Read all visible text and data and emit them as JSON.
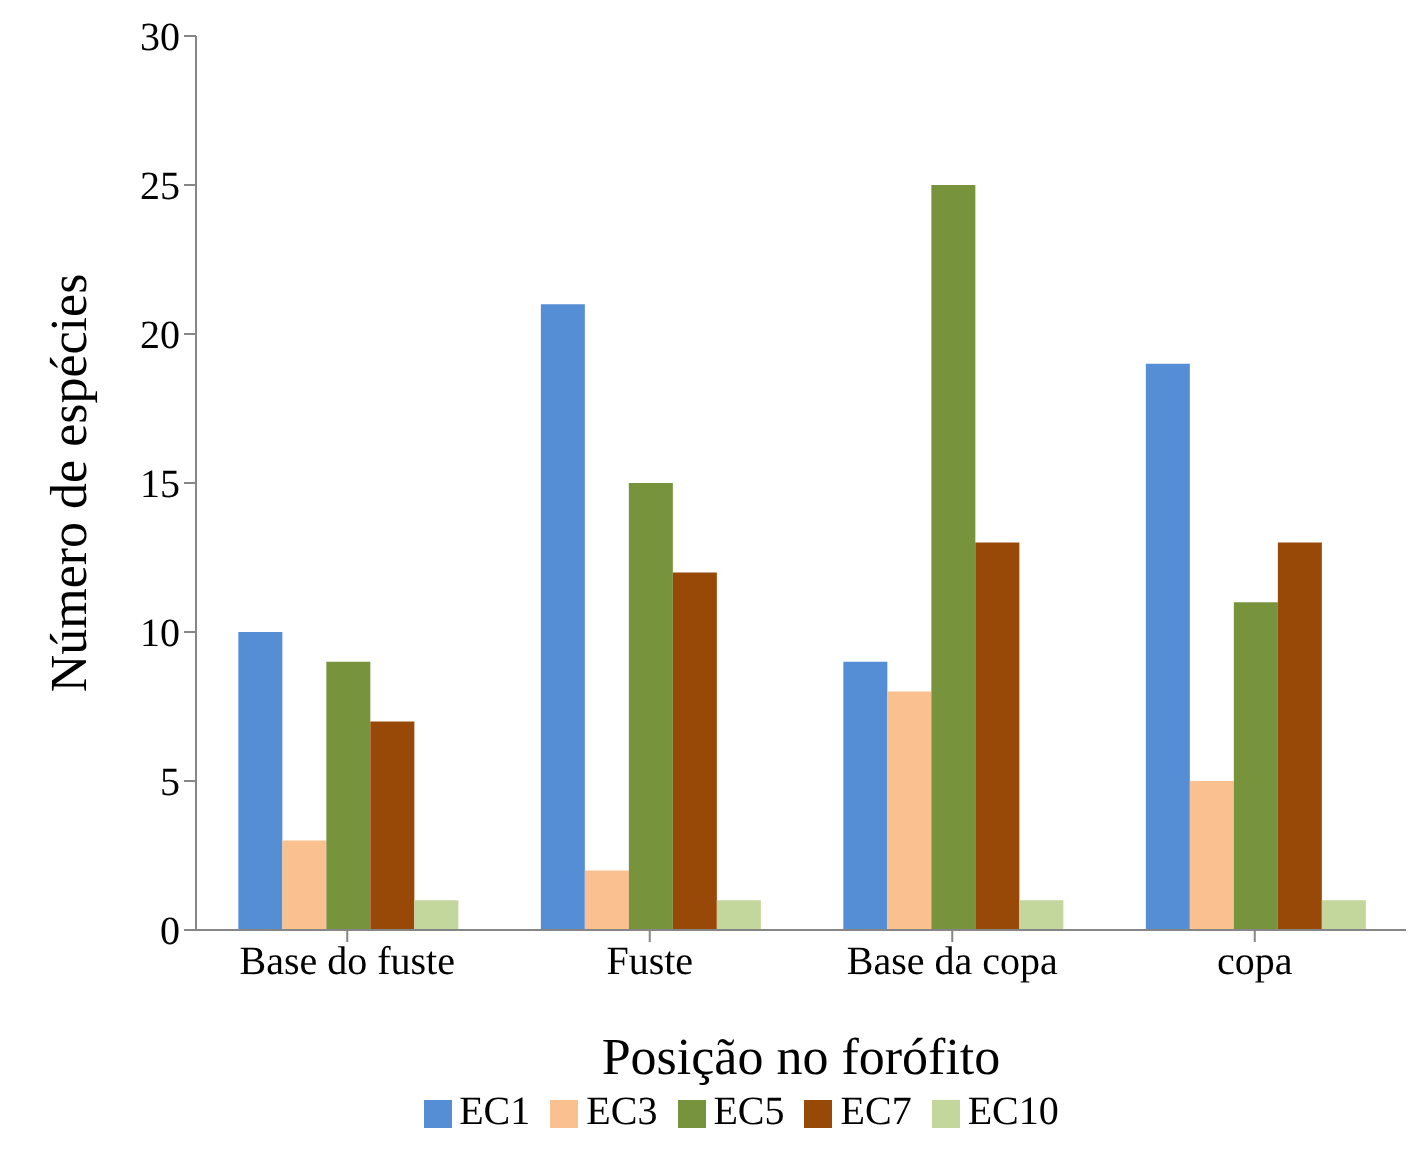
{
  "chart_data": {
    "type": "bar",
    "xlabel": "Posição no forófito",
    "ylabel": "Número de espécies",
    "categories": [
      "Base do fuste",
      "Fuste",
      "Base da copa",
      "copa"
    ],
    "series": [
      {
        "name": "EC1",
        "color": "#558ed5",
        "values": [
          10,
          21,
          9,
          19
        ]
      },
      {
        "name": "EC3",
        "color": "#fac090",
        "values": [
          3,
          2,
          8,
          5
        ]
      },
      {
        "name": "EC5",
        "color": "#77933c",
        "values": [
          9,
          15,
          25,
          11
        ]
      },
      {
        "name": "EC7",
        "color": "#984807",
        "values": [
          7,
          12,
          13,
          13
        ]
      },
      {
        "name": "EC10",
        "color": "#c3d69b",
        "values": [
          1,
          1,
          1,
          1
        ]
      }
    ],
    "ylim": [
      0,
      30
    ],
    "yticks": [
      0,
      5,
      10,
      15,
      20,
      25,
      30
    ],
    "grid": false,
    "legend": "bottom"
  }
}
